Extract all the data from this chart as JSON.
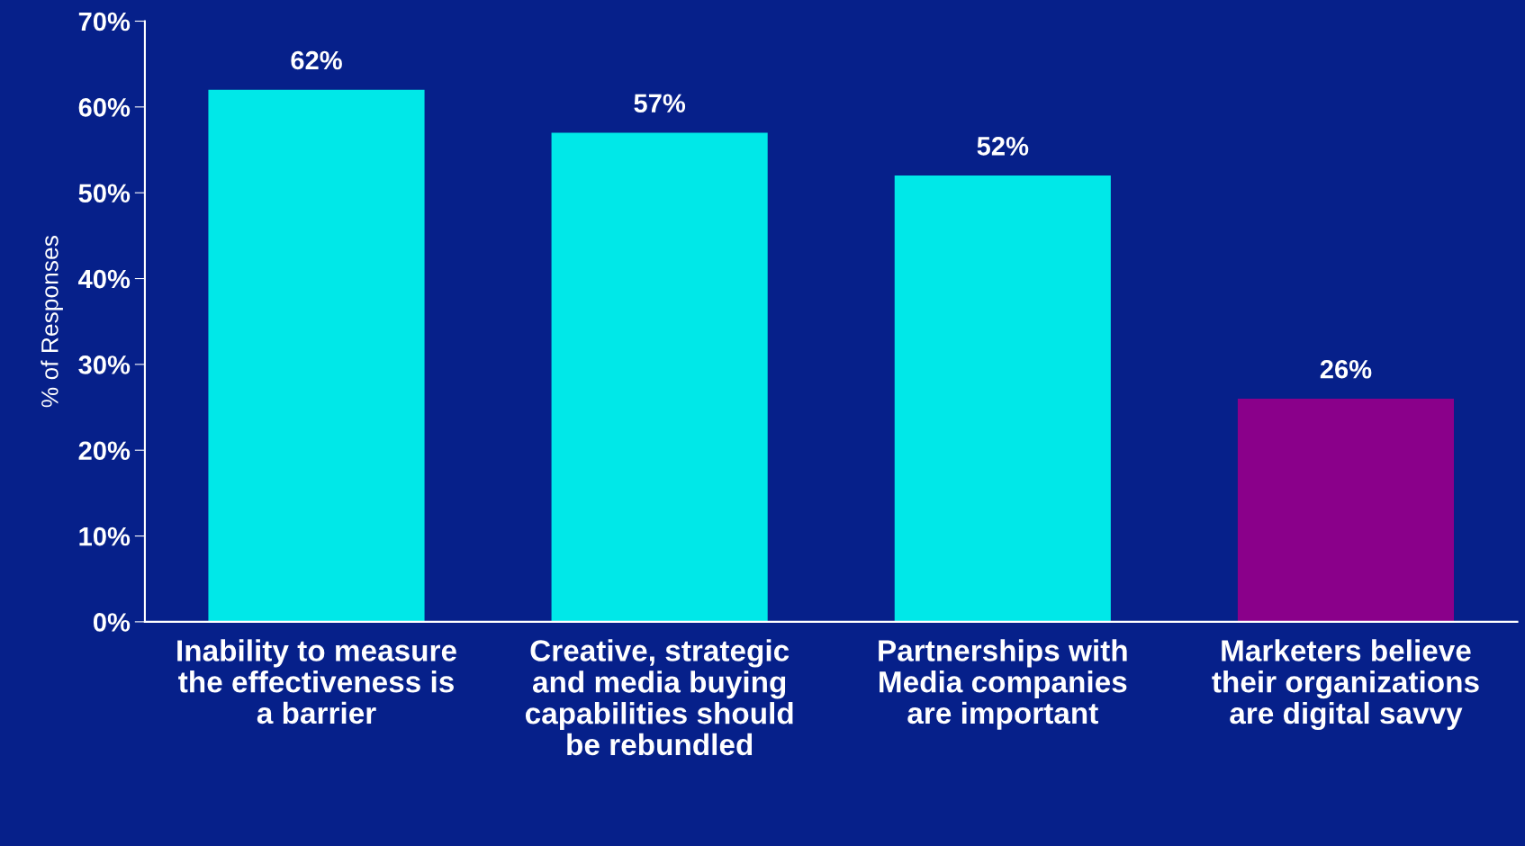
{
  "chart_data": {
    "type": "bar",
    "ylabel": "% of Responses",
    "categories": [
      "Inability to measure\nthe effectiveness is\na barrier",
      "Creative, strategic\nand media buying\ncapabilities should\nbe rebundled",
      "Partnerships with\nMedia companies\nare important",
      "Marketers believe\ntheir organizations\nare digital savvy"
    ],
    "values": [
      62,
      57,
      52,
      26
    ],
    "colors": [
      "#00e8e8",
      "#00e8e8",
      "#00e8e8",
      "#8a008a"
    ],
    "value_labels": [
      "62%",
      "57%",
      "52%",
      "26%"
    ],
    "ylim": [
      0,
      70
    ],
    "yticks": [
      {
        "value": 0,
        "label": "0%"
      },
      {
        "value": 10,
        "label": "10%"
      },
      {
        "value": 20,
        "label": "20%"
      },
      {
        "value": 30,
        "label": "30%"
      },
      {
        "value": 40,
        "label": "40%"
      },
      {
        "value": 50,
        "label": "50%"
      },
      {
        "value": 60,
        "label": "60%"
      },
      {
        "value": 70,
        "label": "70%"
      }
    ],
    "grid": false,
    "legend": false
  }
}
